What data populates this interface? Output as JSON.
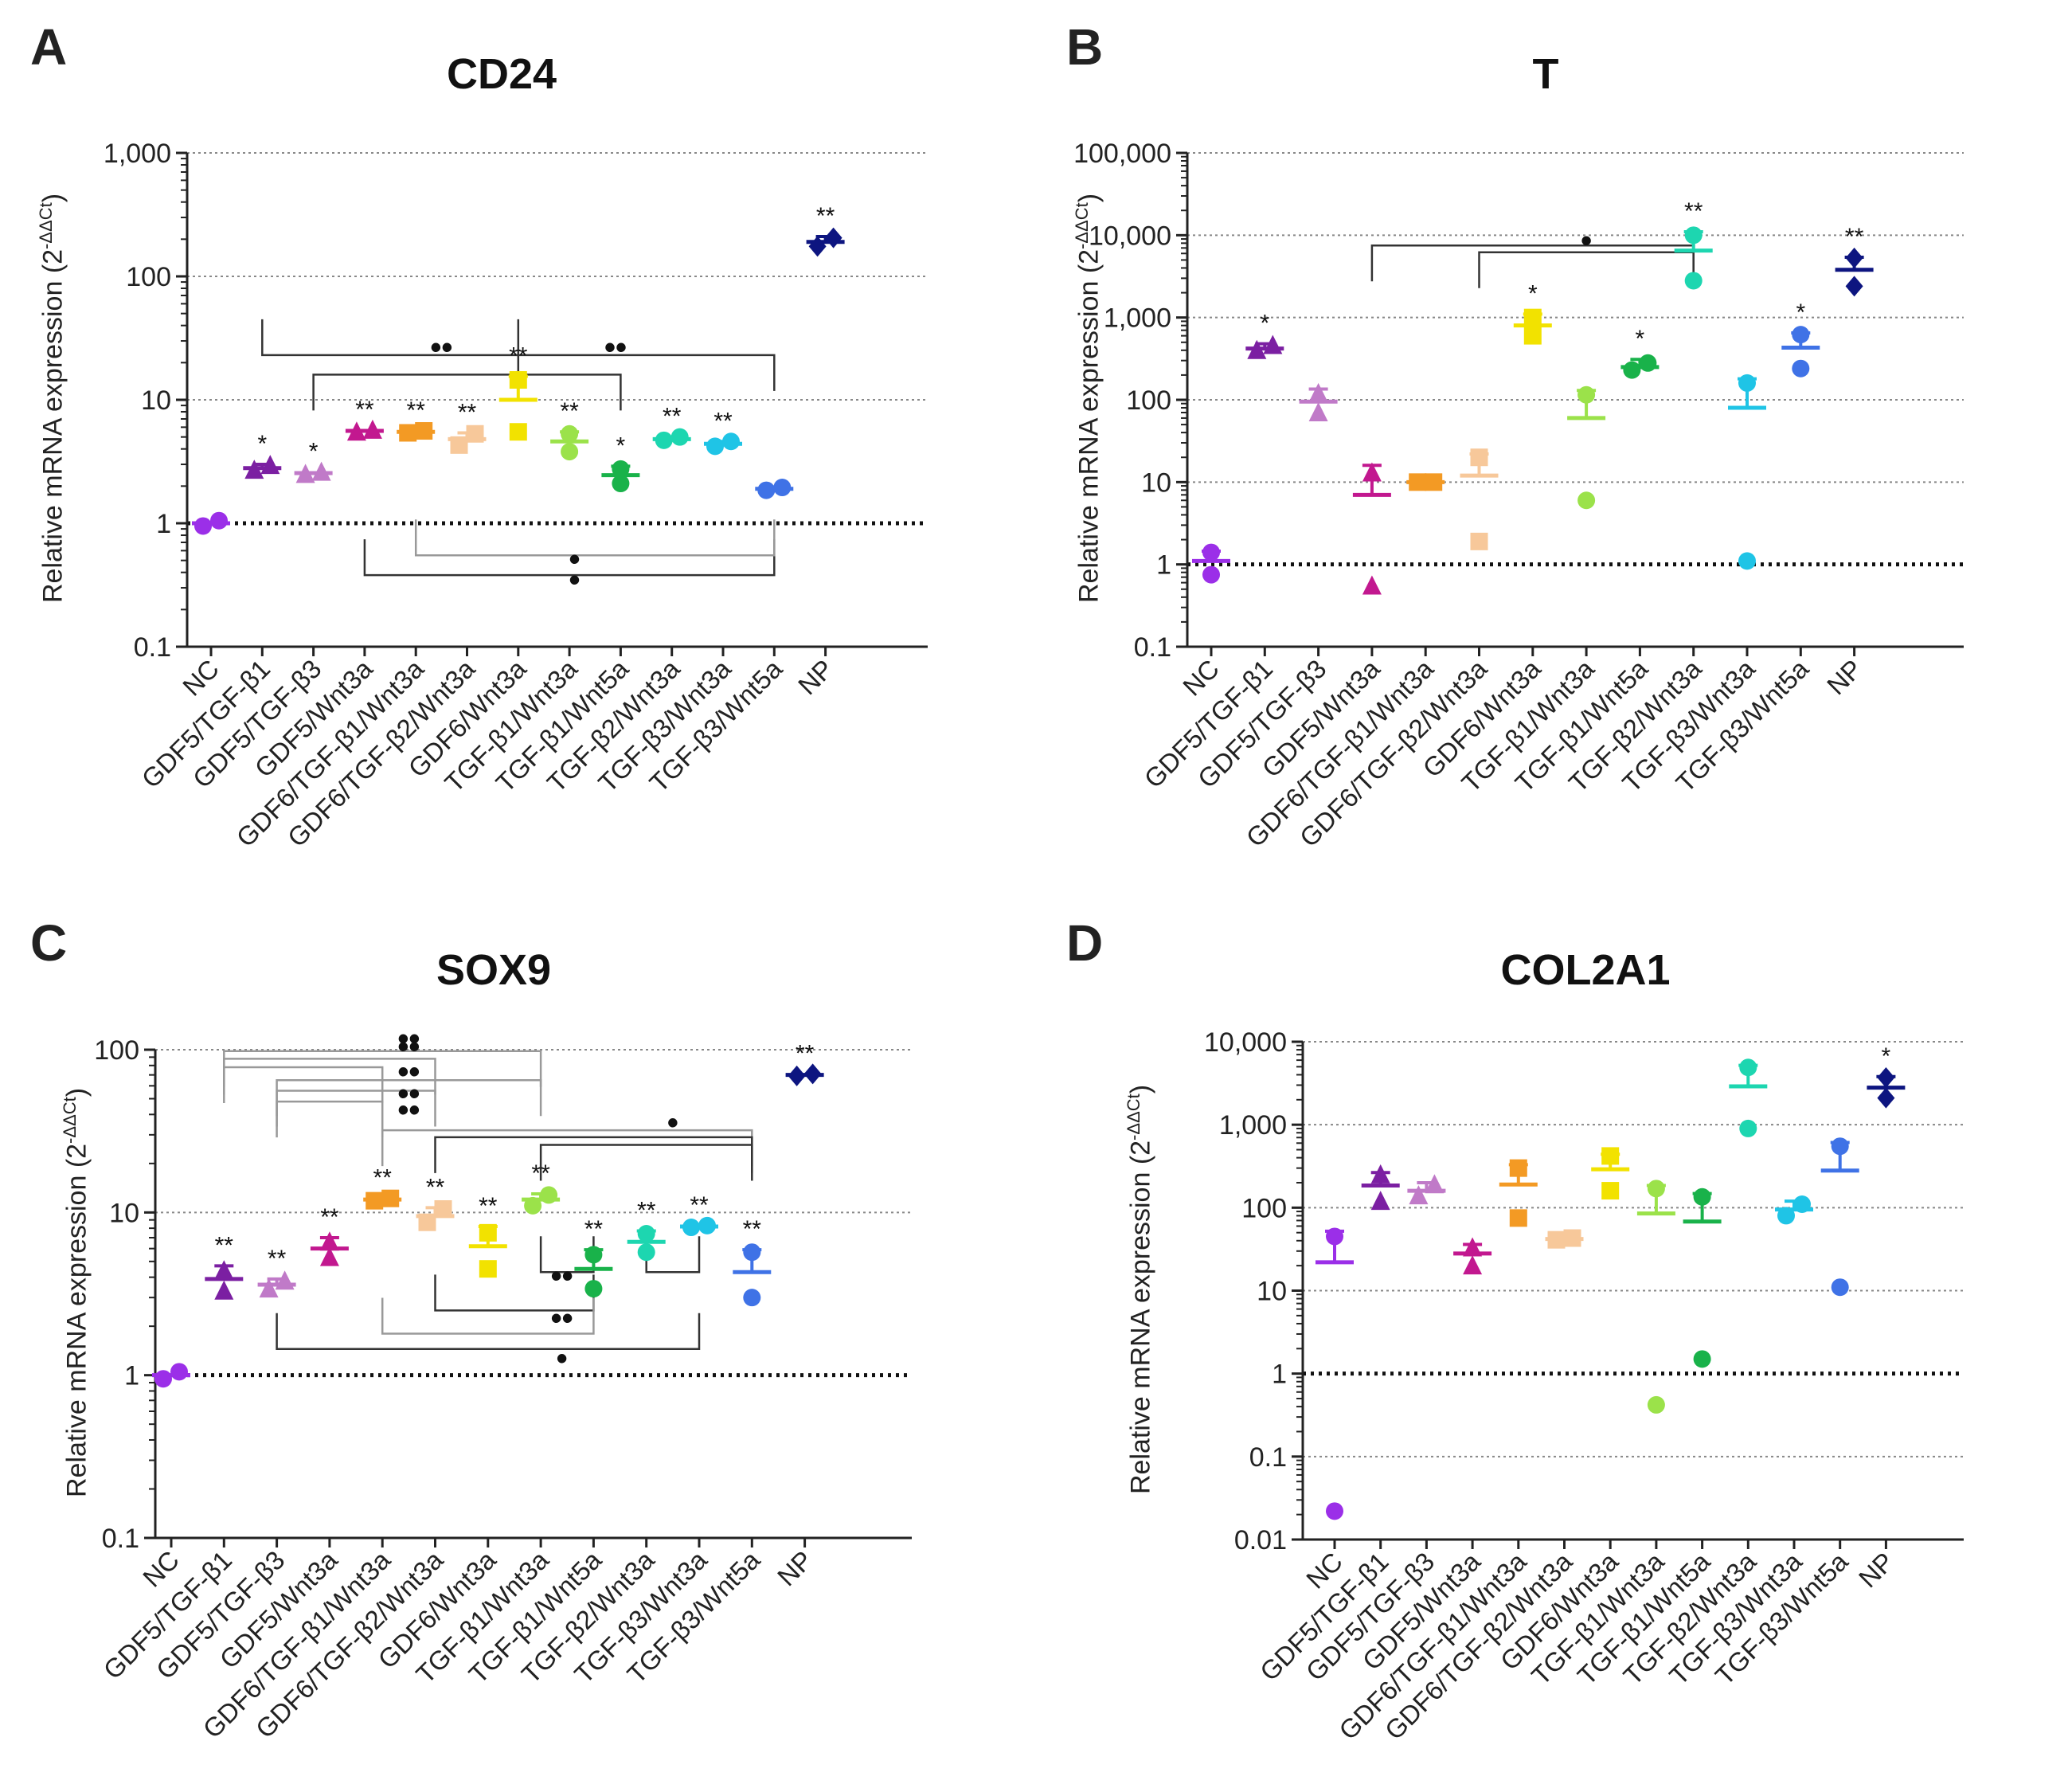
{
  "categories": [
    "NC",
    "GDF5/TGF-β1",
    "GDF5/TGF-β3",
    "GDF5/Wnt3a",
    "GDF6/TGF-β1/Wnt3a",
    "GDF6/TGF-β2/Wnt3a",
    "GDF6/Wnt3a",
    "TGF-β1/Wnt3a",
    "TGF-β1/Wnt5a",
    "TGF-β2/Wnt3a",
    "TGF-β3/Wnt3a",
    "TGF-β3/Wnt5a",
    "NP"
  ],
  "colors": [
    "#9b2fe8",
    "#7b1fa2",
    "#c07ac8",
    "#c2188f",
    "#f39a24",
    "#f7c89a",
    "#f2e200",
    "#9be24a",
    "#19b24a",
    "#1dd6b0",
    "#1fc4e6",
    "#3f72e6",
    "#0d1580"
  ],
  "chart_data": [
    {
      "type": "scatter",
      "panel": "A",
      "title": "CD24",
      "ylabel": "Relative mRNA expression (2",
      "ylabel_sup": "-ΔΔCt",
      "ylabel_end": ")",
      "yscale": "log",
      "ylim": [
        0.1,
        1000
      ],
      "yticks": [
        "0.1",
        "1",
        "10",
        "100",
        "1,000"
      ],
      "series": [
        {
          "mean": 1.0,
          "sd": 0,
          "points": [
            0.95,
            1.05
          ],
          "marker": "circle",
          "sig": ""
        },
        {
          "mean": 2.8,
          "sd": 0.2,
          "points": [
            2.7,
            2.95
          ],
          "marker": "triangle",
          "sig": "*"
        },
        {
          "mean": 2.55,
          "sd": 0,
          "points": [
            2.5,
            2.6
          ],
          "marker": "triangle",
          "sig": "*"
        },
        {
          "mean": 5.6,
          "sd": 0,
          "points": [
            5.5,
            5.7
          ],
          "marker": "triangle",
          "sig": "**"
        },
        {
          "mean": 5.5,
          "sd": 0,
          "points": [
            5.4,
            5.6
          ],
          "marker": "square",
          "sig": "**"
        },
        {
          "mean": 4.8,
          "sd": 0.6,
          "points": [
            4.3,
            5.3
          ],
          "marker": "square",
          "sig": "**"
        },
        {
          "mean": 10.0,
          "sd": 5.5,
          "points": [
            5.5,
            14.5
          ],
          "marker": "square",
          "sig": "**"
        },
        {
          "mean": 4.6,
          "sd": 0.9,
          "points": [
            3.8,
            5.3
          ],
          "marker": "circle",
          "sig": "**"
        },
        {
          "mean": 2.45,
          "sd": 0.45,
          "points": [
            2.1,
            2.75
          ],
          "marker": "circle",
          "sig": "*"
        },
        {
          "mean": 4.8,
          "sd": 0.2,
          "points": [
            4.7,
            5.0
          ],
          "marker": "circle",
          "sig": "**"
        },
        {
          "mean": 4.4,
          "sd": 0.2,
          "points": [
            4.2,
            4.6
          ],
          "marker": "circle",
          "sig": "**"
        },
        {
          "mean": 1.9,
          "sd": 0.05,
          "points": [
            1.85,
            1.95
          ],
          "marker": "circle",
          "sig": ""
        },
        {
          "mean": 190,
          "sd": 20,
          "points": [
            175,
            205
          ],
          "marker": "diamond",
          "sig": "**"
        }
      ],
      "brackets": [
        {
          "from": 1,
          "to": 6,
          "y": 23,
          "style": "dark",
          "ticks": "up"
        },
        {
          "from": 2,
          "to": 8,
          "y": 16,
          "style": "dark",
          "ticks": "down"
        },
        {
          "from": 6,
          "to": 11,
          "y": 23,
          "style": "dark",
          "ticks": "down"
        },
        {
          "from": 3,
          "to": 11,
          "y": 0.38,
          "style": "dark",
          "ticks": "up"
        },
        {
          "from": 4,
          "to": 11,
          "y": 0.55,
          "style": "light",
          "ticks": "up"
        }
      ],
      "marks": [
        {
          "label": "••",
          "at": 4.5,
          "y": 26
        },
        {
          "label": "••",
          "at": 7.9,
          "y": 26
        },
        {
          "label": "•",
          "at": 7.1,
          "y": 0.5
        },
        {
          "label": "•",
          "at": 7.1,
          "y": 0.34
        }
      ]
    },
    {
      "type": "scatter",
      "panel": "B",
      "title": "T",
      "ylabel": "Relative mRNA expression (2",
      "ylabel_sup": "-ΔΔCt",
      "ylabel_end": ")",
      "yscale": "log",
      "ylim": [
        0.1,
        100000
      ],
      "yticks": [
        "0.1",
        "1",
        "10",
        "100",
        "1,000",
        "10,000",
        "100,000"
      ],
      "series": [
        {
          "mean": 1.1,
          "sd": 0.35,
          "points": [
            0.75,
            1.4
          ],
          "marker": "circle",
          "sig": ""
        },
        {
          "mean": 420,
          "sd": 60,
          "points": [
            400,
            460
          ],
          "marker": "triangle",
          "sig": "*"
        },
        {
          "mean": 95,
          "sd": 40,
          "points": [
            70,
            120
          ],
          "marker": "triangle",
          "sig": ""
        },
        {
          "mean": 7,
          "sd": 9,
          "points": [
            0.55,
            13
          ],
          "marker": "triangle",
          "sig": ""
        },
        {
          "mean": 10,
          "sd": 0,
          "points": [
            10,
            10
          ],
          "marker": "square",
          "sig": ""
        },
        {
          "mean": 12,
          "sd": 10,
          "points": [
            1.9,
            20
          ],
          "marker": "square",
          "sig": ""
        },
        {
          "mean": 800,
          "sd": 300,
          "points": [
            600,
            1000
          ],
          "marker": "square",
          "sig": "*"
        },
        {
          "mean": 60,
          "sd": 70,
          "points": [
            6,
            115
          ],
          "marker": "circle",
          "sig": ""
        },
        {
          "mean": 250,
          "sd": 60,
          "points": [
            230,
            280
          ],
          "marker": "circle",
          "sig": "*"
        },
        {
          "mean": 6500,
          "sd": 4500,
          "points": [
            2800,
            10000
          ],
          "marker": "circle",
          "sig": "**"
        },
        {
          "mean": 80,
          "sd": 100,
          "points": [
            1.1,
            160
          ],
          "marker": "circle",
          "sig": ""
        },
        {
          "mean": 430,
          "sd": 220,
          "points": [
            240,
            620
          ],
          "marker": "circle",
          "sig": "*"
        },
        {
          "mean": 3800,
          "sd": 1600,
          "points": [
            2400,
            5300
          ],
          "marker": "diamond",
          "sig": "**"
        }
      ],
      "brackets": [
        {
          "from": 3,
          "to": 9,
          "y": 7500,
          "style": "dark",
          "ticks": "down"
        },
        {
          "from": 5,
          "to": 9,
          "y": 6200,
          "style": "dark",
          "ticks": "down"
        }
      ],
      "marks": [
        {
          "label": "•",
          "at": 7.0,
          "y": 8300
        }
      ]
    },
    {
      "type": "scatter",
      "panel": "C",
      "title": "SOX9",
      "ylabel": "Relative mRNA expression (2",
      "ylabel_sup": "-ΔΔCt",
      "ylabel_end": ")",
      "yscale": "log",
      "ylim": [
        0.1,
        100
      ],
      "yticks": [
        "0.1",
        "1",
        "10",
        "100"
      ],
      "series": [
        {
          "mean": 1.0,
          "sd": 0,
          "points": [
            0.95,
            1.05
          ],
          "marker": "circle",
          "sig": ""
        },
        {
          "mean": 3.9,
          "sd": 0.8,
          "points": [
            3.3,
            4.4
          ],
          "marker": "triangle",
          "sig": "**"
        },
        {
          "mean": 3.6,
          "sd": 0.3,
          "points": [
            3.4,
            3.8
          ],
          "marker": "triangle",
          "sig": "**"
        },
        {
          "mean": 6.0,
          "sd": 1.0,
          "points": [
            5.3,
            6.6
          ],
          "marker": "triangle",
          "sig": "**"
        },
        {
          "mean": 12.0,
          "sd": 0,
          "points": [
            11.8,
            12.2
          ],
          "marker": "square",
          "sig": "**"
        },
        {
          "mean": 9.5,
          "sd": 1.2,
          "points": [
            8.7,
            10.5
          ],
          "marker": "square",
          "sig": "**"
        },
        {
          "mean": 6.2,
          "sd": 2.0,
          "points": [
            4.5,
            7.5
          ],
          "marker": "square",
          "sig": "**"
        },
        {
          "mean": 12.0,
          "sd": 1.0,
          "points": [
            11.0,
            12.8
          ],
          "marker": "circle",
          "sig": "**"
        },
        {
          "mean": 4.5,
          "sd": 1.4,
          "points": [
            3.4,
            5.5
          ],
          "marker": "circle",
          "sig": "**"
        },
        {
          "mean": 6.6,
          "sd": 1.1,
          "points": [
            5.7,
            7.4
          ],
          "marker": "circle",
          "sig": "**"
        },
        {
          "mean": 8.2,
          "sd": 0,
          "points": [
            8.1,
            8.3
          ],
          "marker": "circle",
          "sig": "**"
        },
        {
          "mean": 4.3,
          "sd": 1.6,
          "points": [
            3.0,
            5.7
          ],
          "marker": "circle",
          "sig": "**"
        },
        {
          "mean": 70,
          "sd": 0,
          "points": [
            69,
            71
          ],
          "marker": "diamond",
          "sig": "**"
        }
      ],
      "brackets": [
        {
          "from": 1,
          "to": 7,
          "y": 98,
          "style": "light",
          "ticks": "down"
        },
        {
          "from": 1,
          "to": 5,
          "y": 88,
          "style": "light",
          "ticks": "down"
        },
        {
          "from": 1,
          "to": 4,
          "y": 78,
          "style": "light",
          "ticks": "down"
        },
        {
          "from": 2,
          "to": 7,
          "y": 65,
          "style": "light",
          "ticks": "down"
        },
        {
          "from": 2,
          "to": 5,
          "y": 56,
          "style": "light",
          "ticks": "down"
        },
        {
          "from": 2,
          "to": 4,
          "y": 48,
          "style": "light",
          "ticks": "down"
        },
        {
          "from": 4,
          "to": 11,
          "y": 32,
          "style": "light",
          "ticks": "down"
        },
        {
          "from": 5,
          "to": 11,
          "y": 29,
          "style": "dark",
          "ticks": "down"
        },
        {
          "from": 7,
          "to": 11,
          "y": 26,
          "style": "dark",
          "ticks": "down"
        },
        {
          "from": 7,
          "to": 8,
          "y": 4.3,
          "style": "dark",
          "ticks": "up"
        },
        {
          "from": 9,
          "to": 10,
          "y": 4.3,
          "style": "dark",
          "ticks": "up"
        },
        {
          "from": 5,
          "to": 8,
          "y": 2.5,
          "style": "dark",
          "ticks": "up"
        },
        {
          "from": 4,
          "to": 8,
          "y": 1.8,
          "style": "light",
          "ticks": "up"
        },
        {
          "from": 2,
          "to": 10,
          "y": 1.45,
          "style": "dark",
          "ticks": "up"
        }
      ],
      "marks": [
        {
          "label": "••",
          "at": 4.5,
          "y": 115
        },
        {
          "label": "••",
          "at": 4.5,
          "y": 103
        },
        {
          "label": "••",
          "at": 4.5,
          "y": 72
        },
        {
          "label": "••",
          "at": 4.5,
          "y": 53
        },
        {
          "label": "••",
          "at": 4.5,
          "y": 42
        },
        {
          "label": "•",
          "at": 9.5,
          "y": 35
        },
        {
          "label": "••",
          "at": 7.4,
          "y": 4.0
        },
        {
          "label": "••",
          "at": 7.4,
          "y": 2.2
        },
        {
          "label": "•",
          "at": 7.4,
          "y": 1.25
        }
      ]
    },
    {
      "type": "scatter",
      "panel": "D",
      "title": "COL2A1",
      "ylabel": "Relative mRNA expression (2",
      "ylabel_sup": "-ΔΔCt",
      "ylabel_end": ")",
      "yscale": "log",
      "ylim": [
        0.01,
        10000
      ],
      "yticks": [
        "0.01",
        "0.1",
        "1",
        "10",
        "100",
        "1,000",
        "10,000"
      ],
      "series": [
        {
          "mean": 22,
          "sd": 30,
          "points": [
            0.022,
            45
          ],
          "marker": "circle",
          "sig": ""
        },
        {
          "mean": 185,
          "sd": 80,
          "points": [
            120,
            250
          ],
          "marker": "triangle",
          "sig": ""
        },
        {
          "mean": 160,
          "sd": 40,
          "points": [
            140,
            190
          ],
          "marker": "triangle",
          "sig": ""
        },
        {
          "mean": 28,
          "sd": 8,
          "points": [
            20,
            33
          ],
          "marker": "triangle",
          "sig": ""
        },
        {
          "mean": 190,
          "sd": 140,
          "points": [
            75,
            300
          ],
          "marker": "square",
          "sig": ""
        },
        {
          "mean": 42,
          "sd": 0,
          "points": [
            41,
            43
          ],
          "marker": "square",
          "sig": ""
        },
        {
          "mean": 290,
          "sd": 150,
          "points": [
            160,
            420
          ],
          "marker": "square",
          "sig": ""
        },
        {
          "mean": 85,
          "sd": 100,
          "points": [
            0.42,
            170
          ],
          "marker": "circle",
          "sig": ""
        },
        {
          "mean": 68,
          "sd": 80,
          "points": [
            1.5,
            135
          ],
          "marker": "circle",
          "sig": ""
        },
        {
          "mean": 2900,
          "sd": 2300,
          "points": [
            900,
            4900
          ],
          "marker": "circle",
          "sig": ""
        },
        {
          "mean": 95,
          "sd": 25,
          "points": [
            80,
            110
          ],
          "marker": "circle",
          "sig": ""
        },
        {
          "mean": 280,
          "sd": 330,
          "points": [
            11,
            550
          ],
          "marker": "circle",
          "sig": ""
        },
        {
          "mean": 2800,
          "sd": 1000,
          "points": [
            2100,
            3700
          ],
          "marker": "diamond",
          "sig": "*"
        }
      ],
      "brackets": [],
      "marks": []
    }
  ]
}
